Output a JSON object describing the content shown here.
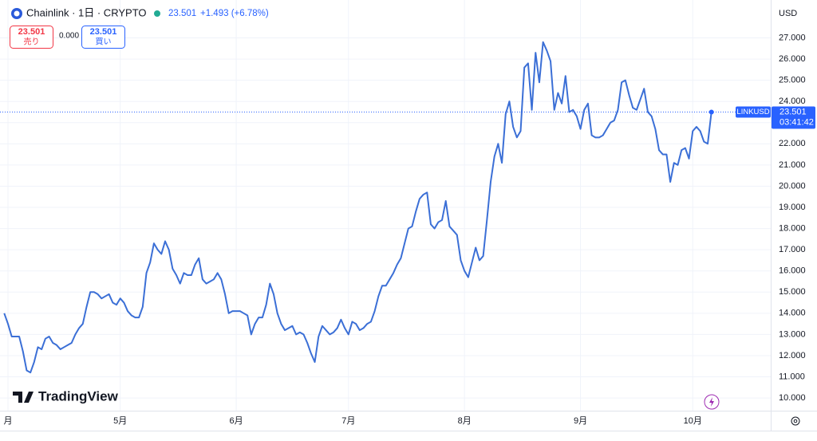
{
  "header": {
    "symbol": "Chainlink · 1日 · CRYPTO",
    "last": "23.501",
    "change": "+1.493 (+6.78%)",
    "sell_price": "23.501",
    "sell_label": "売り",
    "spread": "0.000",
    "buy_price": "23.501",
    "buy_label": "買い",
    "currency": "USD",
    "brand": "TradingView"
  },
  "chart_data": {
    "type": "line",
    "color": "#3b6fd6",
    "grid": true,
    "categories": [
      null,
      "月",
      null,
      null,
      null,
      null,
      null,
      null,
      null,
      null,
      null,
      null,
      null,
      null,
      null,
      null,
      null,
      null,
      null,
      null,
      null,
      null,
      null,
      null,
      null,
      null,
      null,
      null,
      null,
      null,
      null,
      "5月",
      null,
      null,
      null,
      null,
      null,
      null,
      null,
      null,
      null,
      null,
      null,
      null,
      null,
      null,
      null,
      null,
      null,
      null,
      null,
      null,
      null,
      null,
      null,
      null,
      null,
      null,
      null,
      null,
      null,
      null,
      "6月",
      null,
      null,
      null,
      null,
      null,
      null,
      null,
      null,
      null,
      null,
      null,
      null,
      null,
      null,
      null,
      null,
      null,
      null,
      null,
      null,
      null,
      null,
      null,
      null,
      null,
      null,
      null,
      null,
      null,
      "7月",
      null,
      null,
      null,
      null,
      null,
      null,
      null,
      null,
      null,
      null,
      null,
      null,
      null,
      null,
      null,
      null,
      null,
      null,
      null,
      null,
      null,
      null,
      null,
      null,
      null,
      null,
      null,
      null,
      null,
      null,
      "8月",
      null,
      null,
      null,
      null,
      null,
      null,
      null,
      null,
      null,
      null,
      null,
      null,
      null,
      null,
      null,
      null,
      null,
      null,
      null,
      null,
      null,
      null,
      null,
      null,
      null,
      null,
      null,
      null,
      null,
      null,
      "9月",
      null,
      null,
      null,
      null,
      null,
      null,
      null,
      null,
      null,
      null,
      null,
      null,
      null,
      null,
      null,
      null,
      null,
      null,
      null,
      null,
      null,
      null,
      null,
      null,
      null,
      null,
      null,
      null,
      null,
      "10月",
      null,
      null,
      null,
      null,
      null
    ],
    "values": [
      14.0,
      13.5,
      12.9,
      12.9,
      12.9,
      12.2,
      11.3,
      11.2,
      11.7,
      12.4,
      12.3,
      12.8,
      12.9,
      12.6,
      12.5,
      12.3,
      12.4,
      12.5,
      12.6,
      13.0,
      13.3,
      13.5,
      14.3,
      15.0,
      15.0,
      14.9,
      14.7,
      14.8,
      14.9,
      14.5,
      14.4,
      14.7,
      14.5,
      14.1,
      13.9,
      13.8,
      13.8,
      14.3,
      15.9,
      16.4,
      17.3,
      17.0,
      16.8,
      17.4,
      17.0,
      16.1,
      15.8,
      15.4,
      15.9,
      15.8,
      15.8,
      16.3,
      16.6,
      15.6,
      15.4,
      15.5,
      15.6,
      15.9,
      15.6,
      14.9,
      14.0,
      14.1,
      14.1,
      14.1,
      14.0,
      13.9,
      13.0,
      13.5,
      13.8,
      13.8,
      14.4,
      15.4,
      14.9,
      14.0,
      13.5,
      13.2,
      13.3,
      13.4,
      13.0,
      13.1,
      13.0,
      12.6,
      12.1,
      11.7,
      12.9,
      13.4,
      13.2,
      13.0,
      13.1,
      13.3,
      13.7,
      13.3,
      13.0,
      13.6,
      13.5,
      13.2,
      13.3,
      13.5,
      13.6,
      14.1,
      14.8,
      15.3,
      15.3,
      15.6,
      15.9,
      16.3,
      16.6,
      17.3,
      18.0,
      18.1,
      18.8,
      19.4,
      19.6,
      19.7,
      18.2,
      18.0,
      18.3,
      18.4,
      19.3,
      18.1,
      17.9,
      17.7,
      16.5,
      16.0,
      15.7,
      16.4,
      17.1,
      16.5,
      16.7,
      18.4,
      20.2,
      21.4,
      22.0,
      21.1,
      23.4,
      24.0,
      22.8,
      22.3,
      22.6,
      25.6,
      25.8,
      23.6,
      26.3,
      24.9,
      26.8,
      26.4,
      25.9,
      23.6,
      24.4,
      23.9,
      25.2,
      23.5,
      23.6,
      23.3,
      22.7,
      23.6,
      23.9,
      22.4,
      22.3,
      22.3,
      22.4,
      22.7,
      23.0,
      23.1,
      23.6,
      24.9,
      25.0,
      24.3,
      23.7,
      23.6,
      24.1,
      24.6,
      23.5,
      23.3,
      22.7,
      21.7,
      21.5,
      21.5,
      20.2,
      21.1,
      21.0,
      21.7,
      21.8,
      21.3,
      22.6,
      22.8,
      22.6,
      22.1,
      22.0,
      23.501
    ],
    "ylim": [
      9.4,
      28.6
    ],
    "yticks": [
      {
        "value": 10,
        "label": "10.000"
      },
      {
        "value": 11,
        "label": "11.000"
      },
      {
        "value": 12,
        "label": "12.000"
      },
      {
        "value": 13,
        "label": "13.000"
      },
      {
        "value": 14,
        "label": "14.000"
      },
      {
        "value": 15,
        "label": "15.000"
      },
      {
        "value": 16,
        "label": "16.000"
      },
      {
        "value": 17,
        "label": "17.000"
      },
      {
        "value": 18,
        "label": "18.000"
      },
      {
        "value": 19,
        "label": "19.000"
      },
      {
        "value": 20,
        "label": "20.000"
      },
      {
        "value": 21,
        "label": "21.000"
      },
      {
        "value": 22,
        "label": "22.000"
      },
      {
        "value": 23,
        "label": "23.000"
      },
      {
        "value": 24,
        "label": "24.000"
      },
      {
        "value": 25,
        "label": "25.000"
      },
      {
        "value": 26,
        "label": "26.000"
      },
      {
        "value": 27,
        "label": "27.000"
      }
    ],
    "last_label": {
      "symbol": "LINKUSD",
      "price": "23.501",
      "countdown": "03:41:42"
    }
  }
}
